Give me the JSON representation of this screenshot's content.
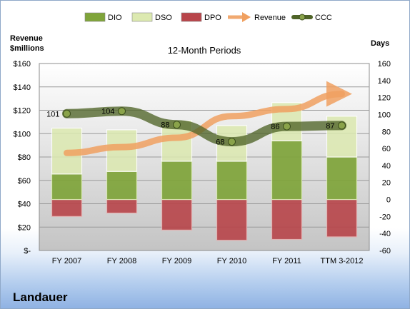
{
  "company": "Landauer",
  "chart_data": {
    "type": "bar",
    "title": "12-Month Periods",
    "y_left_label_line1": "Revenue",
    "y_left_label_line2": "$millions",
    "y_right_label": "Days",
    "categories": [
      "FY 2007",
      "FY 2008",
      "FY 2009",
      "FY 2010",
      "FY 2011",
      "TTM 3-2012"
    ],
    "y_left": {
      "min": 0,
      "max": 160,
      "ticks": [
        "$-",
        "$20",
        "$40",
        "$60",
        "$80",
        "$100",
        "$120",
        "$140",
        "$160"
      ]
    },
    "y_right": {
      "min": -60,
      "max": 160,
      "ticks": [
        "-60",
        "-40",
        "-20",
        "0",
        "20",
        "40",
        "60",
        "80",
        "100",
        "120",
        "140",
        "160"
      ]
    },
    "legend_position": "top",
    "grid": true,
    "series": [
      {
        "name": "DIO",
        "type": "stacked-bar",
        "axis": "right",
        "color": "#7fa43a",
        "values": [
          30,
          33,
          45,
          45,
          69,
          50
        ]
      },
      {
        "name": "DSO",
        "type": "stacked-bar",
        "axis": "right",
        "color": "#dce9b0",
        "values": [
          54,
          49,
          48,
          42,
          45,
          48
        ]
      },
      {
        "name": "DPO",
        "type": "bar-negative",
        "axis": "right",
        "color": "#b8454a",
        "values": [
          -20,
          -16,
          -36,
          -48,
          -47,
          -44
        ]
      },
      {
        "name": "Revenue",
        "type": "line-arrow",
        "axis": "left",
        "color": "#f0a060",
        "values": [
          83.5,
          88.5,
          96.5,
          115,
          121,
          134
        ]
      },
      {
        "name": "CCC",
        "type": "line",
        "axis": "right",
        "color": "#4f6428",
        "values": [
          101,
          104,
          88,
          68,
          86,
          87
        ],
        "labels": [
          "101",
          "104",
          "88",
          "68",
          "86",
          "87"
        ]
      }
    ]
  }
}
